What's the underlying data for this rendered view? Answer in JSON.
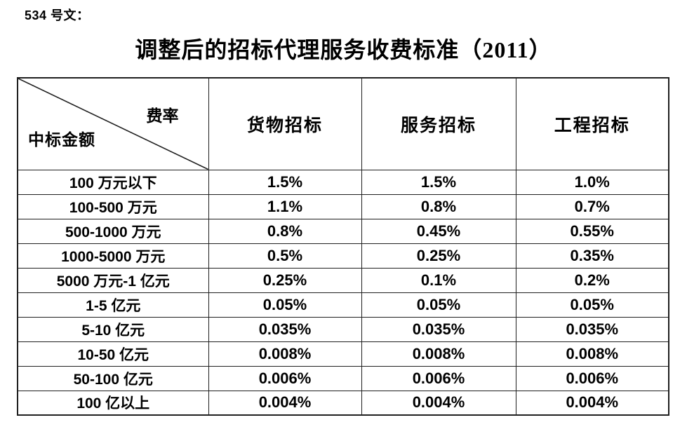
{
  "doc": {
    "ref_label": "534 号文：",
    "title": "调整后的招标代理服务收费标准（2011）"
  },
  "table": {
    "corner": {
      "top_right": "费率",
      "bottom_left": "中标金额"
    },
    "columns": [
      "货物招标",
      "服务招标",
      "工程招标"
    ],
    "rows": [
      {
        "amount": "100 万元以下",
        "values": [
          "1.5%",
          "1.5%",
          "1.0%"
        ]
      },
      {
        "amount": "100-500 万元",
        "values": [
          "1.1%",
          "0.8%",
          "0.7%"
        ]
      },
      {
        "amount": "500-1000 万元",
        "values": [
          "0.8%",
          "0.45%",
          "0.55%"
        ]
      },
      {
        "amount": "1000-5000 万元",
        "values": [
          "0.5%",
          "0.25%",
          "0.35%"
        ]
      },
      {
        "amount": "5000 万元-1 亿元",
        "values": [
          "0.25%",
          "0.1%",
          "0.2%"
        ]
      },
      {
        "amount": "1-5 亿元",
        "values": [
          "0.05%",
          "0.05%",
          "0.05%"
        ]
      },
      {
        "amount": "5-10 亿元",
        "values": [
          "0.035%",
          "0.035%",
          "0.035%"
        ]
      },
      {
        "amount": "10-50 亿元",
        "values": [
          "0.008%",
          "0.008%",
          "0.008%"
        ]
      },
      {
        "amount": "50-100 亿元",
        "values": [
          "0.006%",
          "0.006%",
          "0.006%"
        ]
      },
      {
        "amount": "100 亿以上",
        "values": [
          "0.004%",
          "0.004%",
          "0.004%"
        ]
      }
    ]
  },
  "colors": {
    "text": "#000000",
    "border": "#1f1f1f",
    "background": "#ffffff"
  }
}
